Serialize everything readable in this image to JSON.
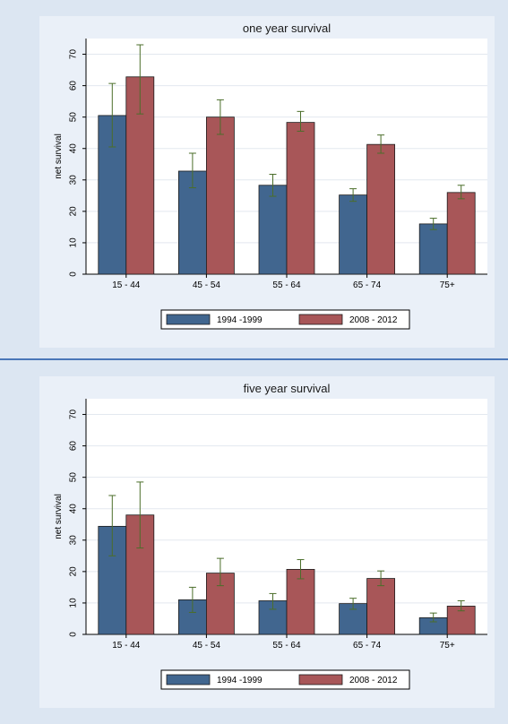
{
  "header": {
    "partial_text": ""
  },
  "chart_data": [
    {
      "type": "bar",
      "title": "one year survival",
      "xlabel": "",
      "ylabel": "net survival",
      "categories": [
        "15 - 44",
        "45 - 54",
        "55 - 64",
        "65 - 74",
        "75+"
      ],
      "ylim": [
        0,
        75
      ],
      "yticks": [
        0,
        10,
        20,
        30,
        40,
        50,
        60,
        70
      ],
      "grid": true,
      "legend_position": "bottom",
      "series": [
        {
          "name": "1994 -1999",
          "color": "#41668f",
          "values": [
            50.5,
            32.8,
            28.3,
            25.2,
            16.0
          ],
          "err_low": [
            40.5,
            27.5,
            24.8,
            23.2,
            14.2
          ],
          "err_high": [
            60.7,
            38.5,
            31.8,
            27.2,
            17.8
          ]
        },
        {
          "name": "2008 - 2012",
          "color": "#a85658",
          "values": [
            62.8,
            50.0,
            48.3,
            41.3,
            26.0
          ],
          "err_low": [
            51.0,
            44.5,
            45.5,
            38.5,
            24.0
          ],
          "err_high": [
            73.0,
            55.5,
            51.8,
            44.3,
            28.3
          ]
        }
      ]
    },
    {
      "type": "bar",
      "title": "five year survival",
      "xlabel": "",
      "ylabel": "net survival",
      "categories": [
        "15 - 44",
        "45 - 54",
        "55 - 64",
        "65 - 74",
        "75+"
      ],
      "ylim": [
        0,
        75
      ],
      "yticks": [
        0,
        10,
        20,
        30,
        40,
        50,
        60,
        70
      ],
      "grid": true,
      "legend_position": "bottom",
      "series": [
        {
          "name": "1994 -1999",
          "color": "#41668f",
          "values": [
            34.4,
            11.0,
            10.7,
            9.8,
            5.3
          ],
          "err_low": [
            25.0,
            7.0,
            8.0,
            8.0,
            4.0
          ],
          "err_high": [
            44.2,
            15.0,
            13.0,
            11.5,
            6.8
          ]
        },
        {
          "name": "2008 - 2012",
          "color": "#a85658",
          "values": [
            38.0,
            19.5,
            20.7,
            17.8,
            9.0
          ],
          "err_low": [
            27.5,
            15.5,
            17.7,
            15.5,
            7.5
          ],
          "err_high": [
            48.5,
            24.2,
            23.8,
            20.2,
            10.7
          ]
        }
      ]
    }
  ]
}
